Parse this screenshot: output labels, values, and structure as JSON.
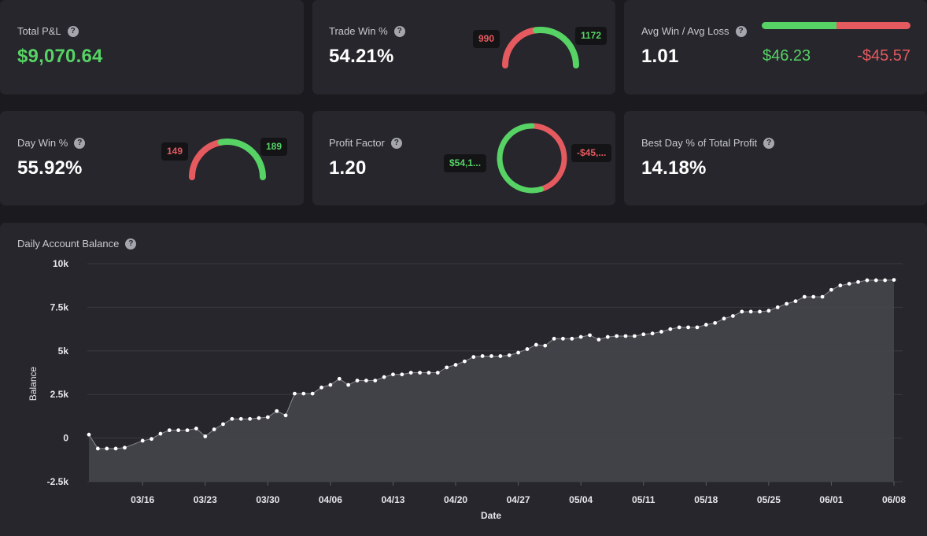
{
  "cards": {
    "total_pnl": {
      "label": "Total P&L",
      "value": "$9,070.64"
    },
    "trade_win": {
      "label": "Trade Win %",
      "value": "54.21%",
      "losses": "990",
      "wins": "1172",
      "win_count": 1172,
      "loss_count": 990
    },
    "avg_win_loss": {
      "label": "Avg Win / Avg Loss",
      "value": "1.01",
      "avg_win": "$46.23",
      "avg_loss": "-$45.57",
      "win_amount": 46.23,
      "loss_amount": 45.57
    },
    "day_win": {
      "label": "Day Win %",
      "value": "55.92%",
      "losses": "149",
      "wins": "189",
      "win_count": 189,
      "loss_count": 149
    },
    "profit_factor": {
      "label": "Profit Factor",
      "value": "1.20",
      "gross_profit": "$54,1...",
      "gross_loss": "-$45,...",
      "profit_share": 0.545
    },
    "best_day": {
      "label": "Best Day % of Total Profit",
      "value": "14.18%"
    }
  },
  "help_glyph": "?",
  "colors": {
    "green": "#56d364",
    "red": "#e45a5f",
    "card": "#26262c",
    "background": "#1b1b1f"
  },
  "chart_data": {
    "type": "area",
    "title": "Daily Account Balance",
    "xlabel": "Date",
    "ylabel": "Balance",
    "ylim": [
      -2500,
      10000
    ],
    "y_ticks": [
      -2500,
      0,
      2500,
      5000,
      7500,
      10000
    ],
    "y_tick_labels": [
      "-2.5k",
      "0",
      "2.5k",
      "5k",
      "7.5k",
      "10k"
    ],
    "x_tick_labels": [
      "03/16",
      "03/23",
      "03/30",
      "04/06",
      "04/13",
      "04/20",
      "04/27",
      "05/04",
      "05/11",
      "05/18",
      "05/25",
      "06/01",
      "06/08"
    ],
    "x_tick_dates": [
      "2020-03-16",
      "2020-03-23",
      "2020-03-30",
      "2020-04-06",
      "2020-04-13",
      "2020-04-20",
      "2020-04-27",
      "2020-05-04",
      "2020-05-11",
      "2020-05-18",
      "2020-05-25",
      "2020-06-01",
      "2020-06-08"
    ],
    "grid": true,
    "series": [
      {
        "name": "",
        "points": [
          [
            "2020-03-10",
            200
          ],
          [
            "2020-03-11",
            -600
          ],
          [
            "2020-03-12",
            -600
          ],
          [
            "2020-03-13",
            -600
          ],
          [
            "2020-03-14",
            -550
          ],
          [
            "2020-03-16",
            -150
          ],
          [
            "2020-03-17",
            -50
          ],
          [
            "2020-03-18",
            250
          ],
          [
            "2020-03-19",
            450
          ],
          [
            "2020-03-20",
            450
          ],
          [
            "2020-03-21",
            450
          ],
          [
            "2020-03-22",
            550
          ],
          [
            "2020-03-23",
            100
          ],
          [
            "2020-03-24",
            500
          ],
          [
            "2020-03-25",
            800
          ],
          [
            "2020-03-26",
            1100
          ],
          [
            "2020-03-27",
            1100
          ],
          [
            "2020-03-28",
            1100
          ],
          [
            "2020-03-29",
            1150
          ],
          [
            "2020-03-30",
            1200
          ],
          [
            "2020-03-31",
            1550
          ],
          [
            "2020-04-01",
            1300
          ],
          [
            "2020-04-02",
            2550
          ],
          [
            "2020-04-03",
            2550
          ],
          [
            "2020-04-04",
            2550
          ],
          [
            "2020-04-05",
            2900
          ],
          [
            "2020-04-06",
            3050
          ],
          [
            "2020-04-07",
            3400
          ],
          [
            "2020-04-08",
            3050
          ],
          [
            "2020-04-09",
            3300
          ],
          [
            "2020-04-10",
            3300
          ],
          [
            "2020-04-11",
            3300
          ],
          [
            "2020-04-12",
            3500
          ],
          [
            "2020-04-13",
            3650
          ],
          [
            "2020-04-14",
            3650
          ],
          [
            "2020-04-15",
            3750
          ],
          [
            "2020-04-16",
            3750
          ],
          [
            "2020-04-17",
            3750
          ],
          [
            "2020-04-18",
            3750
          ],
          [
            "2020-04-19",
            4050
          ],
          [
            "2020-04-20",
            4200
          ],
          [
            "2020-04-21",
            4400
          ],
          [
            "2020-04-22",
            4650
          ],
          [
            "2020-04-23",
            4700
          ],
          [
            "2020-04-24",
            4700
          ],
          [
            "2020-04-25",
            4700
          ],
          [
            "2020-04-26",
            4750
          ],
          [
            "2020-04-27",
            4900
          ],
          [
            "2020-04-28",
            5100
          ],
          [
            "2020-04-29",
            5350
          ],
          [
            "2020-04-30",
            5300
          ],
          [
            "2020-05-01",
            5700
          ],
          [
            "2020-05-02",
            5700
          ],
          [
            "2020-05-03",
            5700
          ],
          [
            "2020-05-04",
            5800
          ],
          [
            "2020-05-05",
            5900
          ],
          [
            "2020-05-06",
            5650
          ],
          [
            "2020-05-07",
            5800
          ],
          [
            "2020-05-08",
            5850
          ],
          [
            "2020-05-09",
            5850
          ],
          [
            "2020-05-10",
            5850
          ],
          [
            "2020-05-11",
            5950
          ],
          [
            "2020-05-12",
            6000
          ],
          [
            "2020-05-13",
            6100
          ],
          [
            "2020-05-14",
            6250
          ],
          [
            "2020-05-15",
            6350
          ],
          [
            "2020-05-16",
            6350
          ],
          [
            "2020-05-17",
            6350
          ],
          [
            "2020-05-18",
            6500
          ],
          [
            "2020-05-19",
            6600
          ],
          [
            "2020-05-20",
            6850
          ],
          [
            "2020-05-21",
            7000
          ],
          [
            "2020-05-22",
            7250
          ],
          [
            "2020-05-23",
            7250
          ],
          [
            "2020-05-24",
            7250
          ],
          [
            "2020-05-25",
            7300
          ],
          [
            "2020-05-26",
            7500
          ],
          [
            "2020-05-27",
            7700
          ],
          [
            "2020-05-28",
            7850
          ],
          [
            "2020-05-29",
            8100
          ],
          [
            "2020-05-30",
            8100
          ],
          [
            "2020-05-31",
            8100
          ],
          [
            "2020-06-01",
            8500
          ],
          [
            "2020-06-02",
            8750
          ],
          [
            "2020-06-03",
            8850
          ],
          [
            "2020-06-04",
            8950
          ],
          [
            "2020-06-05",
            9050
          ],
          [
            "2020-06-06",
            9050
          ],
          [
            "2020-06-07",
            9050
          ],
          [
            "2020-06-08",
            9070
          ]
        ]
      }
    ]
  }
}
